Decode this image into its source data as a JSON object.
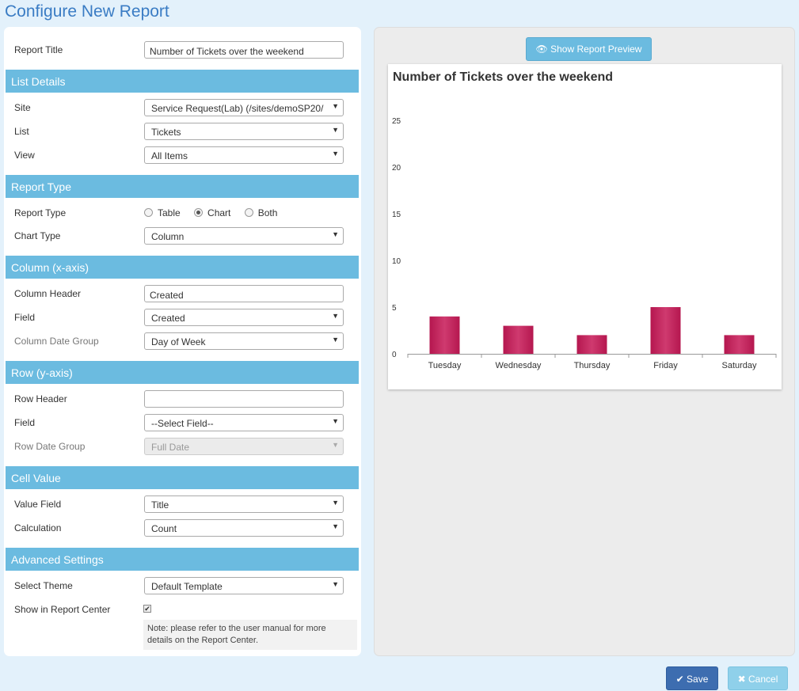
{
  "page": {
    "title": "Configure New Report"
  },
  "form": {
    "report_title": {
      "label": "Report Title",
      "value": "Number of Tickets over the weekend"
    },
    "list_details": {
      "heading": "List Details",
      "site": {
        "label": "Site",
        "value": "Service Request(Lab) (/sites/demoSP20/"
      },
      "list": {
        "label": "List",
        "value": "Tickets"
      },
      "view": {
        "label": "View",
        "value": "All Items"
      }
    },
    "report_type": {
      "heading": "Report Type",
      "type": {
        "label": "Report Type",
        "options": [
          "Table",
          "Chart",
          "Both"
        ],
        "selected": "Chart"
      },
      "chart_type": {
        "label": "Chart Type",
        "value": "Column"
      }
    },
    "column": {
      "heading": "Column (x-axis)",
      "header": {
        "label": "Column Header",
        "value": "Created"
      },
      "field": {
        "label": "Field",
        "value": "Created"
      },
      "date_group": {
        "label": "Column Date Group",
        "value": "Day of Week"
      }
    },
    "row": {
      "heading": "Row (y-axis)",
      "header": {
        "label": "Row Header",
        "value": ""
      },
      "field": {
        "label": "Field",
        "value": "--Select Field--"
      },
      "date_group": {
        "label": "Row Date Group",
        "value": "Full Date"
      }
    },
    "cell_value": {
      "heading": "Cell Value",
      "value_field": {
        "label": "Value Field",
        "value": "Title"
      },
      "calculation": {
        "label": "Calculation",
        "value": "Count"
      }
    },
    "advanced": {
      "heading": "Advanced Settings",
      "theme": {
        "label": "Select Theme",
        "value": "Default Template"
      },
      "report_center": {
        "label": "Show in Report Center",
        "checked": true
      },
      "note": "Note: please refer to the user manual for more details on the Report Center."
    }
  },
  "preview": {
    "button_label": "Show Report Preview",
    "button_icon": "eye-icon"
  },
  "chart_data": {
    "type": "bar",
    "title": "Number of Tickets over the weekend",
    "categories": [
      "Tuesday",
      "Wednesday",
      "Thursday",
      "Friday",
      "Saturday"
    ],
    "values": [
      4,
      3,
      2,
      5,
      2
    ],
    "yticks": [
      0,
      5,
      10,
      15,
      20,
      25
    ],
    "ylim": [
      0,
      25
    ],
    "xlabel": "",
    "ylabel": "",
    "grid": false,
    "legend": "none",
    "bar_color": "#b5174f"
  },
  "actions": {
    "save_label": "Save",
    "cancel_label": "Cancel"
  },
  "colors": {
    "section_header": "#6bbbe0",
    "title": "#3a7cc4",
    "save": "#3d6db0",
    "cancel": "#8fd0ea"
  }
}
